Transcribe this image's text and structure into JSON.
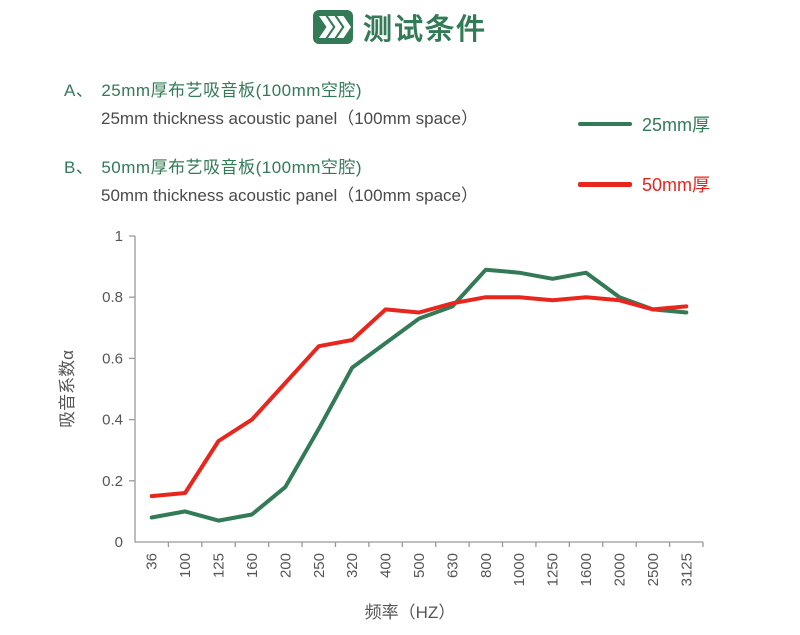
{
  "header": {
    "title": "测试条件"
  },
  "colors": {
    "green": "#337a57",
    "red": "#e8261d",
    "text_gray": "#4a4a4a",
    "tick_gray": "#555555",
    "axis_gray": "#999999"
  },
  "conditions": [
    {
      "marker": "A、",
      "zh": "25mm厚布艺吸音板(100mm空腔)",
      "en": "25mm thickness acoustic panel（100mm space）"
    },
    {
      "marker": "B、",
      "zh": "50mm厚布艺吸音板(100mm空腔)",
      "en": "50mm thickness acoustic panel（100mm space）"
    }
  ],
  "legend": [
    {
      "label": "25mm厚",
      "color": "#337a57"
    },
    {
      "label": "50mm厚",
      "color": "#e8261d"
    }
  ],
  "chart_data": {
    "type": "line",
    "title": "",
    "xlabel": "频率（HZ）",
    "ylabel": "吸音系数α",
    "categories": [
      "36",
      "100",
      "125",
      "160",
      "200",
      "250",
      "320",
      "400",
      "500",
      "630",
      "800",
      "1000",
      "1250",
      "1600",
      "2000",
      "2500",
      "3125"
    ],
    "series": [
      {
        "name": "25mm厚",
        "color": "#337a57",
        "values": [
          0.08,
          0.1,
          0.07,
          0.09,
          0.18,
          0.37,
          0.57,
          0.65,
          0.73,
          0.77,
          0.89,
          0.88,
          0.86,
          0.88,
          0.8,
          0.76,
          0.75
        ]
      },
      {
        "name": "50mm厚",
        "color": "#e8261d",
        "values": [
          0.15,
          0.16,
          0.33,
          0.4,
          0.52,
          0.64,
          0.66,
          0.76,
          0.75,
          0.78,
          0.8,
          0.8,
          0.79,
          0.8,
          0.79,
          0.76,
          0.77
        ]
      }
    ],
    "ylim": [
      0,
      1
    ],
    "yticks": [
      0,
      0.2,
      0.4,
      0.6,
      0.8,
      1
    ],
    "grid": false,
    "legend_position": "right-top"
  }
}
